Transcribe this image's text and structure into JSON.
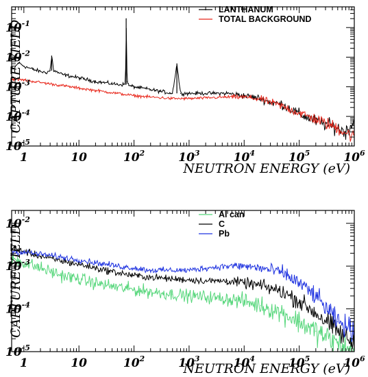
{
  "chart_data": [
    {
      "type": "line",
      "xscale": "log",
      "yscale": "log",
      "xlim": [
        0.6,
        1000000
      ],
      "ylim": [
        1e-05,
        0.5
      ],
      "xlabel": "NEUTRON ENERGY (eV)",
      "ylabel": "CAPTURE YIELD",
      "grid": false,
      "legend_position": "top-right",
      "x_ticks": [
        {
          "base": "1",
          "exp": ""
        },
        {
          "base": "10",
          "exp": ""
        },
        {
          "base": "10",
          "exp": "2"
        },
        {
          "base": "10",
          "exp": "3"
        },
        {
          "base": "10",
          "exp": "4"
        },
        {
          "base": "10",
          "exp": "5"
        },
        {
          "base": "10",
          "exp": "6"
        }
      ],
      "y_ticks": [
        {
          "base": "10",
          "exp": "-5"
        },
        {
          "base": "10",
          "exp": "-4"
        },
        {
          "base": "10",
          "exp": "-3"
        },
        {
          "base": "10",
          "exp": "-2"
        },
        {
          "base": "10",
          "exp": "-1"
        }
      ],
      "series": [
        {
          "name": "LANTHANUM",
          "color": "#000000",
          "x": [
            0.65,
            0.8,
            1,
            1.5,
            2,
            2.5,
            3,
            3.2,
            3.5,
            5,
            10,
            20,
            50,
            70,
            72,
            75,
            80,
            100,
            200,
            300,
            500,
            600,
            700,
            1000,
            2000,
            3000,
            5000,
            10000,
            20000,
            30000,
            50000,
            100000,
            200000,
            500000,
            700000,
            1000000
          ],
          "y": [
            0.004,
            0.0065,
            0.005,
            0.0038,
            0.0033,
            0.003,
            0.0035,
            0.011,
            0.0035,
            0.0026,
            0.002,
            0.0015,
            0.0012,
            0.0012,
            0.2,
            0.0015,
            0.0011,
            0.001,
            0.0008,
            0.0007,
            0.0006,
            0.006,
            0.0006,
            0.0006,
            0.0006,
            0.0006,
            0.0006,
            0.0005,
            0.0004,
            0.0003,
            0.00025,
            0.00012,
            7e-05,
            4e-05,
            3e-05,
            7e-05
          ]
        },
        {
          "name": "TOTAL BACKGROUND",
          "color": "#e8261a",
          "x": [
            0.65,
            1,
            2,
            5,
            10,
            20,
            50,
            100,
            200,
            500,
            1000,
            2000,
            5000,
            10000,
            20000,
            30000,
            50000,
            100000,
            200000,
            500000,
            1000000
          ],
          "y": [
            0.0018,
            0.0017,
            0.0014,
            0.0011,
            0.0009,
            0.00075,
            0.0006,
            0.0005,
            0.00045,
            0.0004,
            0.0004,
            0.00042,
            0.00045,
            0.00045,
            0.00038,
            0.0003,
            0.00022,
            0.00013,
            8e-05,
            4e-05,
            2e-05
          ]
        }
      ]
    },
    {
      "type": "line",
      "xscale": "log",
      "yscale": "log",
      "xlim": [
        0.6,
        1000000
      ],
      "ylim": [
        1e-05,
        0.02
      ],
      "xlabel": "NEUTRON ENERGY (eV)",
      "ylabel": "CAPTURE YIELD",
      "grid": false,
      "legend_position": "top-center",
      "x_ticks": [
        {
          "base": "1",
          "exp": ""
        },
        {
          "base": "10",
          "exp": ""
        },
        {
          "base": "10",
          "exp": "2"
        },
        {
          "base": "10",
          "exp": "3"
        },
        {
          "base": "10",
          "exp": "4"
        },
        {
          "base": "10",
          "exp": "5"
        },
        {
          "base": "10",
          "exp": "6"
        }
      ],
      "y_ticks": [
        {
          "base": "10",
          "exp": "-5"
        },
        {
          "base": "10",
          "exp": "-4"
        },
        {
          "base": "10",
          "exp": "-3"
        },
        {
          "base": "10",
          "exp": "-2"
        }
      ],
      "series": [
        {
          "name": "Al can",
          "color": "#55d67a",
          "x": [
            0.65,
            1,
            2,
            5,
            10,
            20,
            50,
            100,
            200,
            500,
            1000,
            2000,
            5000,
            10000,
            20000,
            50000,
            100000,
            200000,
            500000,
            1000000
          ],
          "y": [
            0.0015,
            0.0012,
            0.0009,
            0.0006,
            0.0005,
            0.0004,
            0.00032,
            0.00028,
            0.00025,
            0.00022,
            0.0002,
            0.00019,
            0.00017,
            0.00015,
            0.00012,
            8e-05,
            5e-05,
            3e-05,
            1.5e-05,
            1e-05
          ]
        },
        {
          "name": "C",
          "color": "#000000",
          "x": [
            0.65,
            1,
            2,
            5,
            10,
            20,
            50,
            100,
            200,
            500,
            1000,
            2000,
            5000,
            10000,
            20000,
            50000,
            100000,
            200000,
            500000,
            1000000
          ],
          "y": [
            0.0026,
            0.0022,
            0.0017,
            0.0013,
            0.0011,
            0.0009,
            0.0007,
            0.0006,
            0.00055,
            0.0005,
            0.00048,
            0.00045,
            0.00045,
            0.0004,
            0.00035,
            0.00025,
            0.00015,
            8e-05,
            3e-05,
            1.5e-05
          ]
        },
        {
          "name": "Pb",
          "color": "#1f33e0",
          "x": [
            0.65,
            1,
            2,
            5,
            10,
            20,
            50,
            100,
            200,
            500,
            1000,
            2000,
            5000,
            10000,
            20000,
            50000,
            100000,
            200000,
            500000,
            1000000
          ],
          "y": [
            0.0022,
            0.0021,
            0.0019,
            0.0016,
            0.0014,
            0.0012,
            0.001,
            0.0009,
            0.0008,
            0.0008,
            0.0008,
            0.0009,
            0.001,
            0.001,
            0.0009,
            0.0007,
            0.0004,
            0.0002,
            5e-05,
            3e-05
          ]
        }
      ]
    }
  ]
}
